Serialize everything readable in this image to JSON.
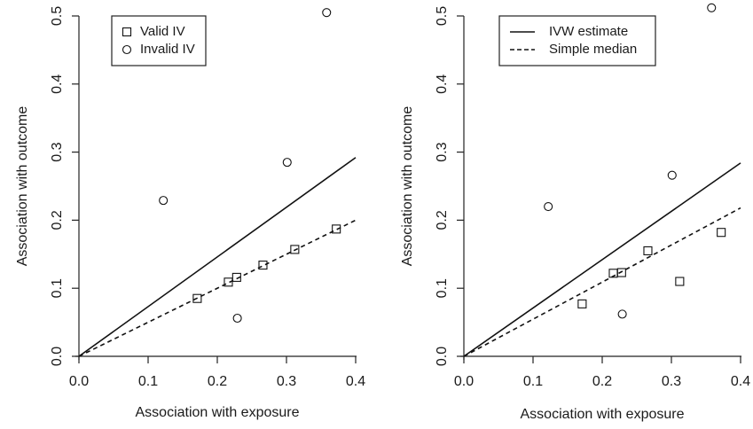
{
  "chart_data": [
    {
      "type": "scatter",
      "xlabel": "Association with exposure",
      "ylabel": "Association with outcome",
      "xlim": [
        0.0,
        0.4
      ],
      "ylim": [
        0.0,
        0.5
      ],
      "x_ticks": [
        "0.0",
        "0.1",
        "0.2",
        "0.3",
        "0.4"
      ],
      "y_ticks": [
        "0.0",
        "0.1",
        "0.2",
        "0.3",
        "0.4",
        "0.5"
      ],
      "grid": false,
      "legend_position": "top-left",
      "series": [
        {
          "name": "Valid IV",
          "marker": "square",
          "points": [
            {
              "x": 0.171,
              "y": 0.085
            },
            {
              "x": 0.216,
              "y": 0.109
            },
            {
              "x": 0.228,
              "y": 0.116
            },
            {
              "x": 0.266,
              "y": 0.134
            },
            {
              "x": 0.312,
              "y": 0.157
            },
            {
              "x": 0.372,
              "y": 0.187
            }
          ]
        },
        {
          "name": "Invalid IV",
          "marker": "circle",
          "points": [
            {
              "x": 0.122,
              "y": 0.229
            },
            {
              "x": 0.229,
              "y": 0.056
            },
            {
              "x": 0.301,
              "y": 0.285
            },
            {
              "x": 0.358,
              "y": 0.505
            }
          ]
        }
      ],
      "lines": [
        {
          "style": "solid",
          "slope": 0.73
        },
        {
          "style": "dashed",
          "slope": 0.5
        }
      ]
    },
    {
      "type": "scatter",
      "xlabel": "Association with exposure",
      "ylabel": "Association with outcome",
      "xlim": [
        0.0,
        0.4
      ],
      "ylim": [
        0.0,
        0.5
      ],
      "x_ticks": [
        "0.0",
        "0.1",
        "0.2",
        "0.3",
        "0.4"
      ],
      "y_ticks": [
        "0.0",
        "0.1",
        "0.2",
        "0.3",
        "0.4",
        "0.5"
      ],
      "grid": false,
      "legend_position": "top-left",
      "legend": [
        {
          "name": "IVW estimate",
          "style": "solid"
        },
        {
          "name": "Simple median",
          "style": "dashed"
        }
      ],
      "series": [
        {
          "marker": "square",
          "points": [
            {
              "x": 0.171,
              "y": 0.077
            },
            {
              "x": 0.216,
              "y": 0.122
            },
            {
              "x": 0.228,
              "y": 0.123
            },
            {
              "x": 0.266,
              "y": 0.155
            },
            {
              "x": 0.312,
              "y": 0.11
            },
            {
              "x": 0.372,
              "y": 0.182
            }
          ]
        },
        {
          "marker": "circle",
          "points": [
            {
              "x": 0.122,
              "y": 0.22
            },
            {
              "x": 0.229,
              "y": 0.062
            },
            {
              "x": 0.301,
              "y": 0.266
            },
            {
              "x": 0.358,
              "y": 0.512
            }
          ]
        }
      ],
      "lines": [
        {
          "style": "solid",
          "slope": 0.71
        },
        {
          "style": "dashed",
          "slope": 0.545
        }
      ]
    }
  ]
}
